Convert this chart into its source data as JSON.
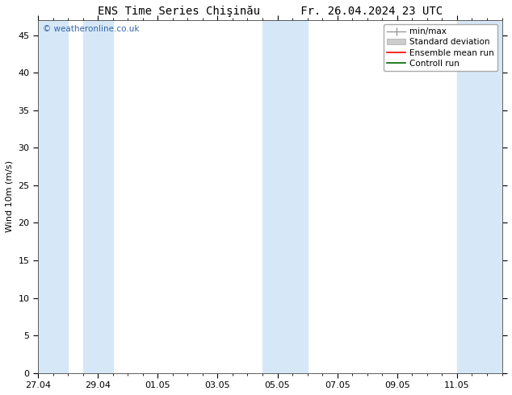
{
  "title": "ENS Time Series Chişinău      Fr. 26.04.2024 23 UTC",
  "ylabel": "Wind 10m (m/s)",
  "watermark": "© weatheronline.co.uk",
  "watermark_color": "#3366aa",
  "ylim": [
    0,
    47
  ],
  "yticks": [
    0,
    5,
    10,
    15,
    20,
    25,
    30,
    35,
    40,
    45
  ],
  "xtick_labels": [
    "27.04",
    "29.04",
    "01.05",
    "03.05",
    "05.05",
    "07.05",
    "09.05",
    "11.05"
  ],
  "xtick_positions": [
    0,
    2,
    4,
    6,
    8,
    10,
    12,
    14
  ],
  "x_min": 0,
  "x_max": 15.5,
  "bg_color": "#ffffff",
  "plot_bg_color": "#ffffff",
  "shaded_color": "#d6e8f7",
  "shaded_bands": [
    [
      0.0,
      1.0
    ],
    [
      1.5,
      2.5
    ],
    [
      7.5,
      8.5
    ],
    [
      8.5,
      9.0
    ],
    [
      14.0,
      14.75
    ],
    [
      14.75,
      15.5
    ]
  ],
  "legend_labels": [
    "min/max",
    "Standard deviation",
    "Ensemble mean run",
    "Controll run"
  ],
  "legend_colors_line": [
    "#999999",
    "#cccccc",
    "#ff0000",
    "#006600"
  ],
  "title_fontsize": 10,
  "tick_fontsize": 8,
  "label_fontsize": 8,
  "legend_fontsize": 7.5,
  "watermark_fontsize": 7.5
}
